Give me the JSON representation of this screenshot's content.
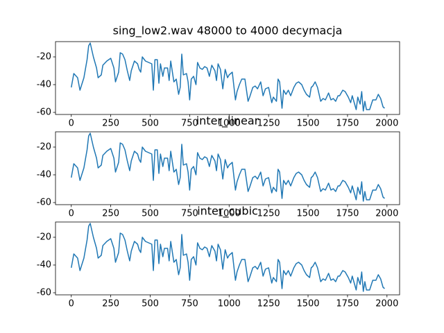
{
  "chart_data": [
    {
      "type": "line",
      "title": "sing_low2.wav 48000 to 4000 decymacja",
      "color": "#1f77b4",
      "x": [
        0,
        16,
        40,
        55,
        80,
        100,
        110,
        120,
        140,
        160,
        170,
        190,
        200,
        225,
        250,
        270,
        280,
        300,
        310,
        325,
        340,
        355,
        370,
        380,
        400,
        420,
        430,
        440,
        450,
        470,
        490,
        510,
        520,
        530,
        545,
        555,
        565,
        580,
        590,
        610,
        620,
        630,
        650,
        665,
        680,
        690,
        700,
        710,
        730,
        740,
        750,
        760,
        775,
        790,
        800,
        815,
        830,
        845,
        860,
        875,
        890,
        910,
        920,
        930,
        945,
        960,
        975,
        990,
        1000,
        1020,
        1040,
        1050,
        1065,
        1080,
        1100,
        1120,
        1130,
        1150,
        1165,
        1180,
        1200,
        1215,
        1230,
        1250,
        1270,
        1280,
        1300,
        1310,
        1320,
        1335,
        1345,
        1360,
        1375,
        1390,
        1410,
        1425,
        1440,
        1460,
        1475,
        1490,
        1510,
        1520,
        1530,
        1545,
        1560,
        1580,
        1595,
        1610,
        1630,
        1645,
        1660,
        1675,
        1690,
        1700,
        1720,
        1735,
        1755,
        1770,
        1780,
        1795,
        1805,
        1815,
        1830,
        1840,
        1850,
        1860,
        1870,
        1890,
        1910,
        1930,
        1945,
        1960,
        1975,
        1985
      ],
      "values": [
        -42,
        -32,
        -35,
        -44,
        -35,
        -22,
        -12,
        -10,
        -20,
        -28,
        -35,
        -33,
        -26,
        -23,
        -21,
        -28,
        -38,
        -31,
        -17,
        -18,
        -22,
        -30,
        -37,
        -30,
        -23,
        -25,
        -29,
        -31,
        -20,
        -23,
        -24,
        -25,
        -44,
        -22,
        -22,
        -39,
        -25,
        -34,
        -28,
        -28,
        -37,
        -23,
        -38,
        -36,
        -47,
        -42,
        -18,
        -33,
        -32,
        -38,
        -51,
        -36,
        -34,
        -40,
        -24,
        -28,
        -29,
        -27,
        -28,
        -34,
        -26,
        -30,
        -37,
        -25,
        -29,
        -43,
        -29,
        -35,
        -33,
        -31,
        -51,
        -45,
        -40,
        -36,
        -36,
        -52,
        -49,
        -42,
        -41,
        -43,
        -38,
        -48,
        -43,
        -42,
        -53,
        -49,
        -52,
        -36,
        -38,
        -57,
        -44,
        -47,
        -44,
        -48,
        -42,
        -39,
        -38,
        -40,
        -44,
        -47,
        -49,
        -42,
        -41,
        -38,
        -42,
        -52,
        -50,
        -51,
        -46,
        -51,
        -50,
        -52,
        -48,
        -48,
        -44,
        -45,
        -49,
        -53,
        -48,
        -54,
        -58,
        -49,
        -54,
        -45,
        -59,
        -52,
        -58,
        -58,
        -51,
        -51,
        -47,
        -50,
        -56,
        -57
      ],
      "xlim": [
        -100,
        2080
      ],
      "ylim": [
        -61.5,
        -9
      ],
      "xticks": [
        0,
        250,
        500,
        750,
        1000,
        1250,
        1500,
        1750,
        2000
      ],
      "yticks": [
        -20,
        -40,
        -60
      ]
    },
    {
      "type": "line",
      "title": "inter_linear",
      "color": "#1f77b4",
      "x": [
        0,
        16,
        40,
        55,
        80,
        100,
        110,
        120,
        140,
        160,
        170,
        190,
        200,
        225,
        250,
        270,
        280,
        300,
        310,
        325,
        340,
        355,
        370,
        380,
        400,
        420,
        430,
        440,
        450,
        470,
        490,
        510,
        520,
        530,
        545,
        555,
        565,
        580,
        590,
        610,
        620,
        630,
        650,
        665,
        680,
        690,
        700,
        710,
        730,
        740,
        750,
        760,
        775,
        790,
        800,
        815,
        830,
        845,
        860,
        875,
        890,
        910,
        920,
        930,
        945,
        960,
        975,
        990,
        1000,
        1020,
        1040,
        1050,
        1065,
        1080,
        1100,
        1120,
        1130,
        1150,
        1165,
        1180,
        1200,
        1215,
        1230,
        1250,
        1270,
        1280,
        1300,
        1310,
        1320,
        1335,
        1345,
        1360,
        1375,
        1390,
        1410,
        1425,
        1440,
        1460,
        1475,
        1490,
        1510,
        1520,
        1530,
        1545,
        1560,
        1580,
        1595,
        1610,
        1630,
        1645,
        1660,
        1675,
        1690,
        1700,
        1720,
        1735,
        1755,
        1770,
        1780,
        1795,
        1805,
        1815,
        1830,
        1840,
        1850,
        1860,
        1870,
        1890,
        1910,
        1930,
        1945,
        1960,
        1975,
        1985
      ],
      "values": [
        -42,
        -32,
        -35,
        -44,
        -35,
        -22,
        -12,
        -10,
        -20,
        -28,
        -35,
        -33,
        -26,
        -23,
        -21,
        -28,
        -38,
        -31,
        -17,
        -18,
        -22,
        -30,
        -37,
        -30,
        -23,
        -25,
        -29,
        -31,
        -20,
        -23,
        -24,
        -25,
        -44,
        -22,
        -22,
        -39,
        -25,
        -34,
        -28,
        -28,
        -37,
        -23,
        -38,
        -36,
        -47,
        -42,
        -18,
        -33,
        -32,
        -38,
        -51,
        -36,
        -34,
        -40,
        -24,
        -28,
        -29,
        -27,
        -28,
        -34,
        -26,
        -30,
        -37,
        -25,
        -29,
        -43,
        -29,
        -35,
        -33,
        -31,
        -51,
        -45,
        -40,
        -36,
        -36,
        -52,
        -49,
        -42,
        -41,
        -43,
        -38,
        -48,
        -43,
        -42,
        -53,
        -49,
        -52,
        -36,
        -38,
        -57,
        -44,
        -47,
        -44,
        -48,
        -42,
        -39,
        -38,
        -40,
        -44,
        -47,
        -49,
        -42,
        -41,
        -38,
        -42,
        -52,
        -50,
        -51,
        -46,
        -51,
        -50,
        -52,
        -48,
        -48,
        -44,
        -45,
        -49,
        -53,
        -48,
        -54,
        -58,
        -49,
        -54,
        -45,
        -59,
        -52,
        -58,
        -58,
        -51,
        -51,
        -47,
        -50,
        -56,
        -57
      ],
      "xlim": [
        -100,
        2080
      ],
      "ylim": [
        -61.5,
        -9
      ],
      "xticks": [
        0,
        250,
        500,
        750,
        1000,
        1250,
        1500,
        1750,
        2000
      ],
      "yticks": [
        -20,
        -40,
        -60
      ]
    },
    {
      "type": "line",
      "title": "inter_cubic",
      "color": "#1f77b4",
      "x": [
        0,
        16,
        40,
        55,
        80,
        100,
        110,
        120,
        140,
        160,
        170,
        190,
        200,
        225,
        250,
        270,
        280,
        300,
        310,
        325,
        340,
        355,
        370,
        380,
        400,
        420,
        430,
        440,
        450,
        470,
        490,
        510,
        520,
        530,
        545,
        555,
        565,
        580,
        590,
        610,
        620,
        630,
        650,
        665,
        680,
        690,
        700,
        710,
        730,
        740,
        750,
        760,
        775,
        790,
        800,
        815,
        830,
        845,
        860,
        875,
        890,
        910,
        920,
        930,
        945,
        960,
        975,
        990,
        1000,
        1020,
        1040,
        1050,
        1065,
        1080,
        1100,
        1120,
        1130,
        1150,
        1165,
        1180,
        1200,
        1215,
        1230,
        1250,
        1270,
        1280,
        1300,
        1310,
        1320,
        1335,
        1345,
        1360,
        1375,
        1390,
        1410,
        1425,
        1440,
        1460,
        1475,
        1490,
        1510,
        1520,
        1530,
        1545,
        1560,
        1580,
        1595,
        1610,
        1630,
        1645,
        1660,
        1675,
        1690,
        1700,
        1720,
        1735,
        1755,
        1770,
        1780,
        1795,
        1805,
        1815,
        1830,
        1840,
        1850,
        1860,
        1870,
        1890,
        1910,
        1930,
        1945,
        1960,
        1975,
        1985
      ],
      "values": [
        -42,
        -32,
        -35,
        -44,
        -35,
        -22,
        -12,
        -10,
        -20,
        -28,
        -35,
        -33,
        -26,
        -23,
        -21,
        -28,
        -38,
        -31,
        -17,
        -18,
        -22,
        -30,
        -37,
        -30,
        -23,
        -25,
        -29,
        -31,
        -20,
        -23,
        -24,
        -25,
        -44,
        -22,
        -22,
        -39,
        -25,
        -34,
        -28,
        -28,
        -37,
        -23,
        -38,
        -36,
        -47,
        -42,
        -18,
        -33,
        -32,
        -38,
        -51,
        -36,
        -34,
        -40,
        -24,
        -28,
        -29,
        -27,
        -28,
        -34,
        -26,
        -30,
        -37,
        -25,
        -29,
        -43,
        -29,
        -35,
        -33,
        -31,
        -51,
        -45,
        -40,
        -36,
        -36,
        -52,
        -49,
        -42,
        -41,
        -43,
        -38,
        -48,
        -43,
        -42,
        -53,
        -49,
        -52,
        -36,
        -38,
        -57,
        -44,
        -47,
        -44,
        -48,
        -42,
        -39,
        -38,
        -40,
        -44,
        -47,
        -49,
        -42,
        -41,
        -38,
        -42,
        -52,
        -50,
        -51,
        -46,
        -51,
        -50,
        -52,
        -48,
        -48,
        -44,
        -45,
        -49,
        -53,
        -48,
        -54,
        -58,
        -49,
        -54,
        -45,
        -59,
        -52,
        -58,
        -58,
        -51,
        -51,
        -47,
        -50,
        -56,
        -57
      ],
      "xlim": [
        -100,
        2080
      ],
      "ylim": [
        -61.5,
        -9
      ],
      "xticks": [
        0,
        250,
        500,
        750,
        1000,
        1250,
        1500,
        1750,
        2000
      ],
      "yticks": [
        -20,
        -40,
        -60
      ]
    }
  ]
}
